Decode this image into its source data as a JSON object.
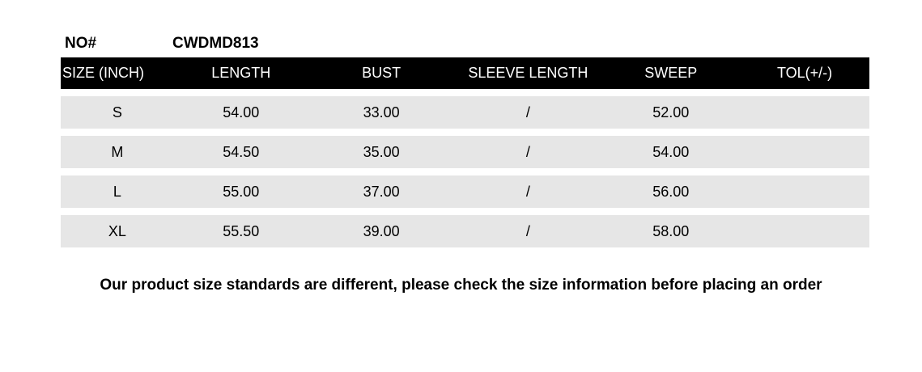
{
  "product": {
    "no_label": "NO#",
    "no_value": "CWDMD813"
  },
  "table": {
    "headers": [
      "SIZE (INCH)",
      "LENGTH",
      "BUST",
      "SLEEVE LENGTH",
      "SWEEP",
      "TOL(+/-)"
    ],
    "rows": [
      {
        "size": "S",
        "length": "54.00",
        "bust": "33.00",
        "sleeve_length": "/",
        "sweep": "52.00",
        "tol": ""
      },
      {
        "size": "M",
        "length": "54.50",
        "bust": "35.00",
        "sleeve_length": "/",
        "sweep": "54.00",
        "tol": ""
      },
      {
        "size": "L",
        "length": "55.00",
        "bust": "37.00",
        "sleeve_length": "/",
        "sweep": "56.00",
        "tol": ""
      },
      {
        "size": "XL",
        "length": "55.50",
        "bust": "39.00",
        "sleeve_length": "/",
        "sweep": "58.00",
        "tol": ""
      }
    ]
  },
  "note": "Our product size standards are different, please check the size information before placing an order",
  "colors": {
    "header_bg": "#000000",
    "header_text": "#ffffff",
    "row_bg": "#e6e6e6",
    "text": "#000000",
    "page_bg": "#ffffff"
  }
}
